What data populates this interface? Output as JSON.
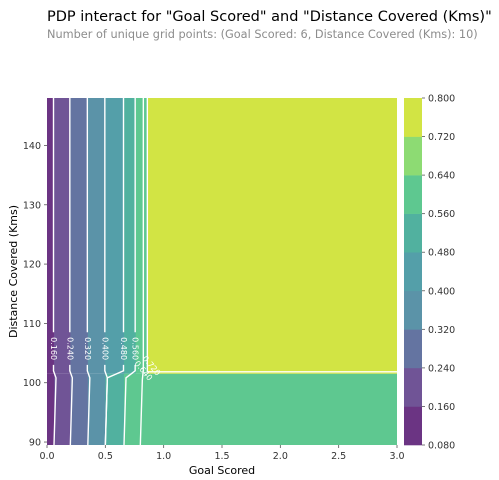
{
  "header": {
    "title": "PDP interact for \"Goal Scored\" and \"Distance Covered (Kms)\"",
    "subtitle": "Number of unique grid points: (Goal Scored: 6, Distance Covered (Kms): 10)"
  },
  "chart_data": {
    "type": "contour",
    "xlabel": "Goal Scored",
    "ylabel": "Distance Covered (Kms)",
    "xlim": [
      0.0,
      3.0
    ],
    "ylim": [
      89.5,
      148
    ],
    "x_ticks": [
      "0.0",
      "0.5",
      "1.0",
      "1.5",
      "2.0",
      "2.5",
      "3.0"
    ],
    "y_ticks": [
      "90",
      "100",
      "110",
      "120",
      "130",
      "140"
    ],
    "colorbar": {
      "levels": [
        0.08,
        0.16,
        0.24,
        0.32,
        0.4,
        0.48,
        0.56,
        0.64,
        0.72,
        0.8
      ],
      "tick_labels": [
        "0.080",
        "0.160",
        "0.240",
        "0.320",
        "0.400",
        "0.480",
        "0.560",
        "0.640",
        "0.720",
        "0.800"
      ],
      "colors": [
        "#6b3483",
        "#705496",
        "#6474a1",
        "#5b93a8",
        "#549fa9",
        "#51b19f",
        "#5ec890",
        "#8ddb73",
        "#d2e444",
        "#fce843"
      ]
    },
    "upper_region_y_start": 101.5,
    "upper_region_x_start": 0.86,
    "columns": [
      {
        "x0": 0.0,
        "x1": 0.06,
        "value_upper": 0.12,
        "value_lower": 0.12
      },
      {
        "x0": 0.06,
        "x1": 0.2,
        "value_upper": 0.2,
        "value_lower": 0.2
      },
      {
        "x0": 0.2,
        "x1": 0.35,
        "value_upper": 0.28,
        "value_lower": 0.28
      },
      {
        "x0": 0.35,
        "x1": 0.5,
        "value_upper": 0.36,
        "value_lower": 0.36
      },
      {
        "x0": 0.5,
        "x1": 0.66,
        "value_upper": 0.44,
        "value_lower": 0.52
      },
      {
        "x0": 0.66,
        "x1": 0.76,
        "value_upper": 0.52,
        "value_lower": 0.6
      },
      {
        "x0": 0.76,
        "x1": 0.86,
        "value_upper": 0.6,
        "value_lower": 0.6
      }
    ],
    "region_upper_right_value": 0.76,
    "region_lower_right_value": 0.6,
    "contour_lines": [
      {
        "label": "0.160",
        "x_upper": 0.06,
        "x_lower": 0.06
      },
      {
        "label": "0.240",
        "x_upper": 0.2,
        "x_lower": 0.2
      },
      {
        "label": "0.320",
        "x_upper": 0.35,
        "x_lower": 0.35
      },
      {
        "label": "0.400",
        "x_upper": 0.5,
        "x_lower": 0.5
      },
      {
        "label": "0.480",
        "x_upper": 0.66,
        "x_lower": 0.5
      },
      {
        "label": "0.560",
        "x_upper": 0.76,
        "x_lower": 0.66
      },
      {
        "label": "0.640",
        "x_upper": 0.86,
        "x_lower": 0.8
      },
      {
        "label": "0.720",
        "x_upper": 0.86,
        "x_lower": 3.0
      }
    ]
  }
}
